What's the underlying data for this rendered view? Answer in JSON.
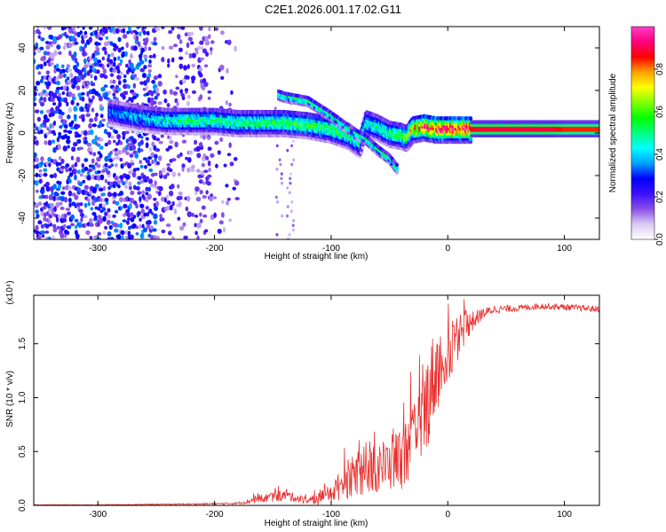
{
  "title": "C2E1.2026.001.17.02.G11",
  "colors": {
    "background": "#ffffff",
    "axis": "#000000",
    "snr_line": "#e8302e",
    "ridge_violet": "#6a1bd8",
    "ridge_blue": "#1f4fe0"
  },
  "chart_data": [
    {
      "type": "heatmap",
      "title": "",
      "xlabel": "Height of straight line (km)",
      "ylabel": "Frequency (Hz)",
      "xlim": [
        -355,
        130
      ],
      "ylim": [
        -50,
        50
      ],
      "xticks": [
        -300,
        -200,
        -100,
        0,
        100
      ],
      "xtick_labels": [
        "-300",
        "-200",
        "-100",
        "0",
        "100"
      ],
      "yticks": [
        -40,
        -20,
        0,
        20,
        40
      ],
      "ytick_labels": [
        "-40",
        "-20",
        "0",
        "20",
        "40"
      ],
      "colorbar": {
        "label": "Normalized spectral amplitude",
        "range": [
          0,
          1
        ],
        "ticks": [
          0.0,
          0.2,
          0.4,
          0.6,
          0.8
        ],
        "tick_labels": [
          "0.0",
          "0.2",
          "0.4",
          "0.6",
          "0.8"
        ],
        "colormap": [
          "#ffffff",
          "#dccaf3",
          "#8a4fe6",
          "#3b10ff",
          "#0000ff",
          "#00a0ff",
          "#00ffff",
          "#00ff80",
          "#00ff00",
          "#80ff00",
          "#ffff00",
          "#ffa000",
          "#ff0000",
          "#ff0080",
          "#ff3cc8"
        ]
      },
      "ridge": {
        "x": [
          -290,
          -260,
          -240,
          -220,
          -200,
          -180,
          -160,
          -140,
          -120,
          -100,
          -85,
          -75,
          -70,
          -60,
          -50,
          -40,
          -35,
          -30,
          -20,
          -10,
          0,
          10,
          20,
          30,
          60,
          90,
          100,
          130
        ],
        "y": [
          10,
          7,
          6,
          6,
          6,
          5,
          5,
          5,
          4,
          2,
          -1,
          -5,
          5,
          3,
          0,
          -1,
          -2,
          2,
          3,
          2,
          2,
          2,
          2,
          2,
          2,
          2,
          2,
          2
        ],
        "amplitude": [
          0.35,
          0.4,
          0.45,
          0.5,
          0.5,
          0.5,
          0.52,
          0.55,
          0.55,
          0.55,
          0.5,
          0.45,
          0.45,
          0.5,
          0.5,
          0.55,
          0.6,
          0.75,
          0.85,
          0.9,
          0.9,
          0.9,
          0.92,
          0.95,
          0.95,
          0.95,
          0.9,
          0.9
        ]
      },
      "branches": [
        {
          "x": [
            -80,
            -70,
            -60,
            -50,
            -43
          ],
          "y": [
            0,
            -3,
            -8,
            -12,
            -17
          ]
        },
        {
          "x": [
            -145,
            -140,
            -130,
            -120,
            -100,
            -85
          ],
          "y": [
            18,
            17,
            16,
            15,
            8,
            2
          ]
        }
      ]
    },
    {
      "type": "line",
      "title": "",
      "xlabel": "Height of straight line (km)",
      "ylabel": "SNR (10 * v/v)",
      "multiplier": "(x10⁴)",
      "xlim": [
        -355,
        130
      ],
      "ylim": [
        0,
        1.95
      ],
      "xticks": [
        -300,
        -200,
        -100,
        0,
        100
      ],
      "xtick_labels": [
        "-300",
        "-200",
        "-100",
        "0",
        "100"
      ],
      "yticks": [
        0.0,
        0.5,
        1.0,
        1.5
      ],
      "ytick_labels": [
        "0.0",
        "0.5",
        "1.0",
        "1.5"
      ],
      "series": [
        {
          "name": "SNR",
          "x": [
            -355,
            -300,
            -250,
            -200,
            -180,
            -160,
            -150,
            -140,
            -130,
            -120,
            -110,
            -100,
            -90,
            -80,
            -70,
            -60,
            -50,
            -40,
            -30,
            -25,
            -20,
            -15,
            -10,
            -5,
            0,
            5,
            10,
            20,
            30,
            40,
            60,
            80,
            100,
            130
          ],
          "y": [
            0.005,
            0.005,
            0.01,
            0.015,
            0.02,
            0.06,
            0.08,
            0.09,
            0.07,
            0.04,
            0.06,
            0.12,
            0.2,
            0.28,
            0.32,
            0.35,
            0.38,
            0.45,
            0.55,
            0.7,
            0.85,
            1.1,
            1.25,
            1.3,
            1.4,
            1.5,
            1.6,
            1.7,
            1.78,
            1.82,
            1.83,
            1.85,
            1.84,
            1.82
          ],
          "noise_amplitude": [
            0.003,
            0.003,
            0.005,
            0.008,
            0.01,
            0.04,
            0.05,
            0.05,
            0.04,
            0.03,
            0.06,
            0.1,
            0.15,
            0.2,
            0.22,
            0.25,
            0.25,
            0.3,
            0.35,
            0.4,
            0.45,
            0.45,
            0.4,
            0.35,
            0.3,
            0.3,
            0.2,
            0.1,
            0.05,
            0.04,
            0.03,
            0.03,
            0.03,
            0.03
          ]
        }
      ]
    }
  ]
}
